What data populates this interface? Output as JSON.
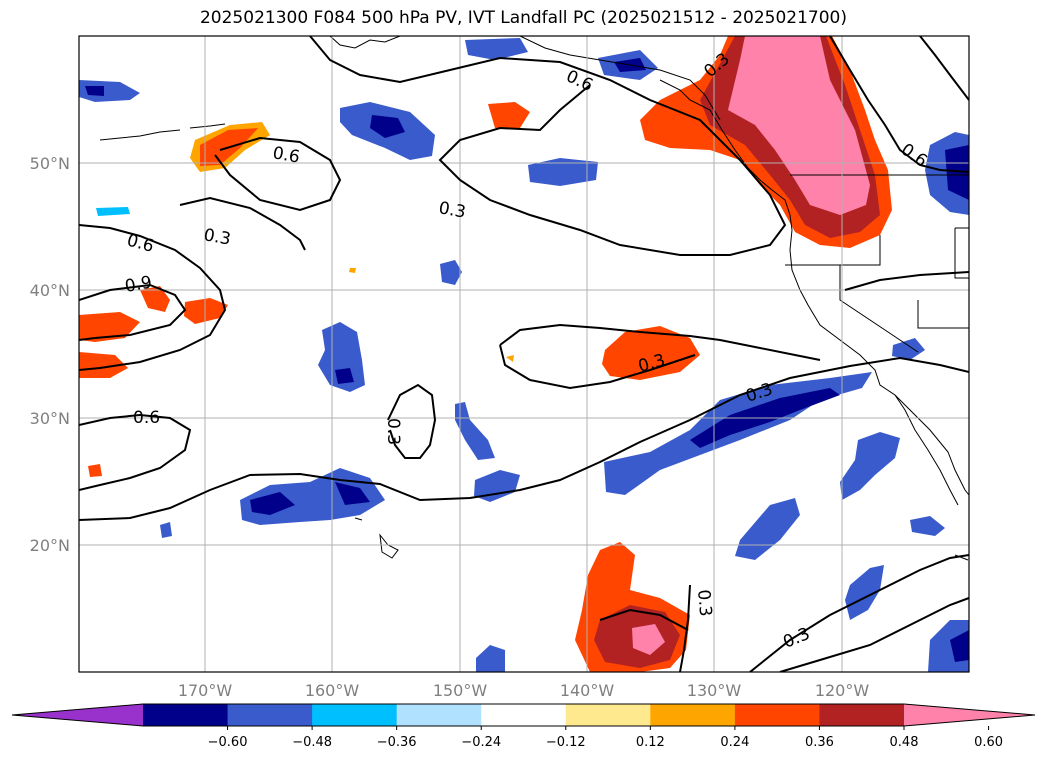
{
  "title": "2025021300 F084 500 hPa PV, IVT Landfall PC (2025021512 - 2025021700)",
  "map": {
    "lon_ticks": [
      "170°W",
      "160°W",
      "150°W",
      "140°W",
      "130°W",
      "120°W"
    ],
    "lat_ticks": [
      "50°N",
      "40°N",
      "30°N",
      "20°N"
    ],
    "contour_labels": [
      "0.6",
      "0.3",
      "0.6",
      "0.6",
      "0.3",
      "0.9",
      "0.6",
      "0.3",
      "0.3",
      "0.6",
      "0.3",
      "0.3",
      "0.3",
      "0.3"
    ],
    "grid": true
  },
  "colorbar": {
    "ticks": [
      "−0.60",
      "−0.48",
      "−0.36",
      "−0.24",
      "−0.12",
      "0.12",
      "0.24",
      "0.36",
      "0.48",
      "0.60"
    ],
    "colors": [
      "#9932cc",
      "#00008b",
      "#3a5bcc",
      "#00bfff",
      "#b0e2ff",
      "#ffffff",
      "#ffe98f",
      "#ffa500",
      "#ff4500",
      "#b22222",
      "#ff82ab"
    ],
    "extend": "both"
  }
}
